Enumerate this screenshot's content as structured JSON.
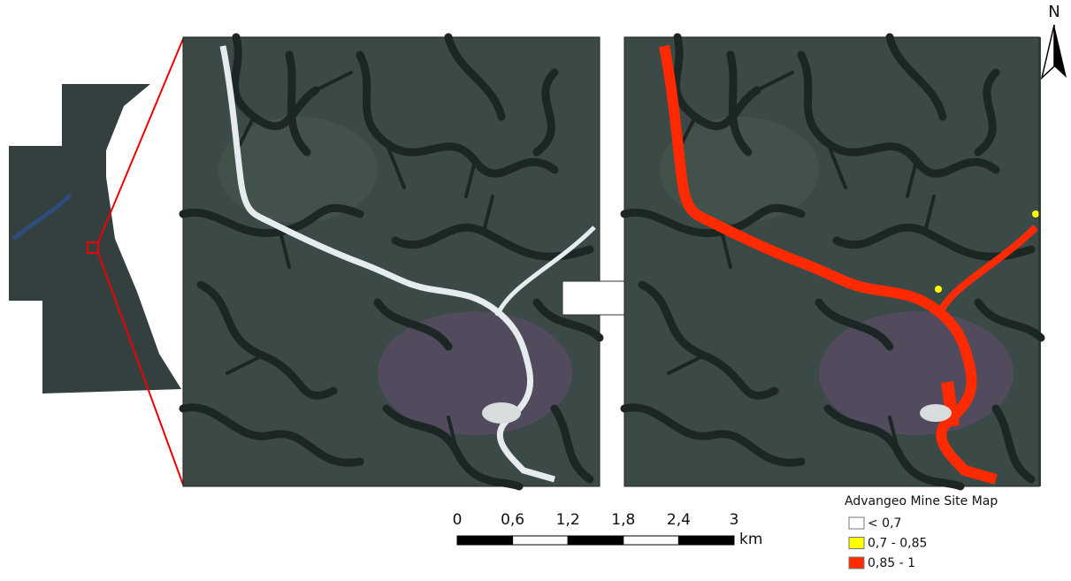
{
  "north_arrow": {
    "label": "N"
  },
  "scale_bar": {
    "labels": [
      "0",
      "0,6",
      "1,2",
      "1,8",
      "2,4",
      "3"
    ],
    "unit": "km"
  },
  "legend": {
    "title": "Advangeo Mine Site Map",
    "items": [
      {
        "label": "< 0,7",
        "color": "#ffffff"
      },
      {
        "label": "0,7 - 0,85",
        "color": "#ffff00"
      },
      {
        "label": "0,85 - 1",
        "color": "#ff2a00"
      }
    ]
  }
}
